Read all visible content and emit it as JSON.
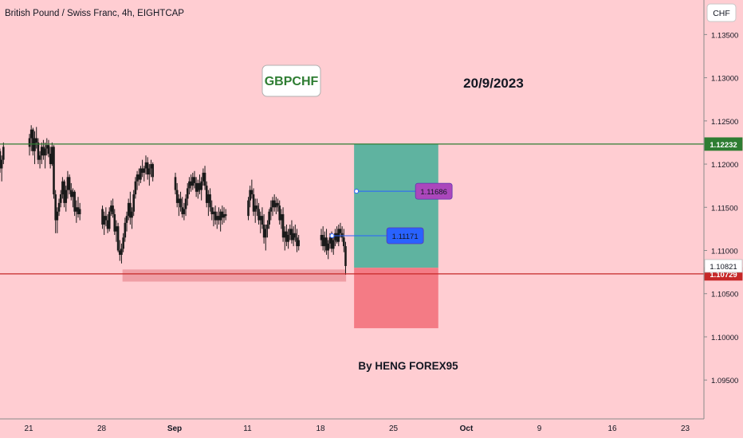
{
  "header": {
    "title": "British Pound / Swiss Franc, 4h, EIGHTCAP",
    "currency_button": "CHF"
  },
  "annotations": {
    "symbol_badge": "GBPCHF",
    "date_label": "20/9/2023",
    "author_label": "By HENG FOREX95"
  },
  "colors": {
    "background": "#ffcdd2",
    "candle": "#1a1a1a",
    "resistance": "#2e7d32",
    "support": "#c62828",
    "profit_zone": "#5fb3a0",
    "loss_zone": "#f47b85",
    "blue_label": "#2962ff",
    "purple_label": "#ab47bc"
  },
  "chart_data": {
    "type": "candlestick",
    "title": "British Pound / Swiss Franc, 4h, EIGHTCAP",
    "ylim": [
      1.0905,
      1.139
    ],
    "price_ticks": [
      "1.13500",
      "1.13000",
      "1.12500",
      "1.12000",
      "1.11500",
      "1.11000",
      "1.10500",
      "1.10000",
      "1.09500"
    ],
    "price_tick_values": [
      1.135,
      1.13,
      1.125,
      1.12,
      1.115,
      1.11,
      1.105,
      1.1,
      1.095
    ],
    "x_ticks": [
      "21",
      "28",
      "Sep",
      "11",
      "18",
      "25",
      "Oct",
      "9",
      "16",
      "23"
    ],
    "x_tick_dates": [
      "2023-08-21",
      "2023-08-28",
      "2023-09-04",
      "2023-09-11",
      "2023-09-18",
      "2023-09-25",
      "2023-10-02",
      "2023-10-09",
      "2023-10-16",
      "2023-10-23"
    ],
    "grid": false,
    "levels": [
      {
        "label": "1.12232",
        "value": 1.12232,
        "kind": "resistance"
      },
      {
        "label": "1.10729",
        "value": 1.10729,
        "kind": "support"
      },
      {
        "label": "1.10821",
        "value": 1.10821,
        "kind": "last-price"
      }
    ],
    "position": {
      "entry": 1.108,
      "target": 1.12232,
      "stop": 1.101,
      "start_date": "2023-09-20",
      "end_date": "2023-09-29"
    },
    "price_labels": [
      {
        "label": "1.11686",
        "value": 1.11686,
        "color": "purple"
      },
      {
        "label": "1.11171",
        "value": 1.11171,
        "color": "blue"
      }
    ],
    "demand_zone": {
      "low": 1.1064,
      "high": 1.1078,
      "start_date": "2023-08-30",
      "end_date": "2023-09-20"
    },
    "candles": [
      [
        "2023-08-17 16:00",
        1.1195,
        1.12,
        1.1173,
        1.118
      ],
      [
        "2023-08-17 20:00",
        1.118,
        1.1205,
        1.1175,
        1.12
      ],
      [
        "2023-08-18 00:00",
        1.12,
        1.1222,
        1.1195,
        1.1215
      ],
      [
        "2023-08-18 04:00",
        1.1215,
        1.1218,
        1.119,
        1.1195
      ],
      [
        "2023-08-18 08:00",
        1.1195,
        1.121,
        1.118,
        1.1205
      ],
      [
        "2023-08-18 12:00",
        1.1205,
        1.1225,
        1.12,
        1.122
      ],
      [
        "2023-08-21 00:00",
        1.122,
        1.1235,
        1.121,
        1.123
      ],
      [
        "2023-08-21 04:00",
        1.123,
        1.1245,
        1.1215,
        1.124
      ],
      [
        "2023-08-21 08:00",
        1.124,
        1.1242,
        1.121,
        1.1215
      ],
      [
        "2023-08-21 12:00",
        1.1215,
        1.1238,
        1.12,
        1.123
      ],
      [
        "2023-08-21 16:00",
        1.123,
        1.1243,
        1.1218,
        1.1225
      ],
      [
        "2023-08-21 20:00",
        1.1225,
        1.123,
        1.12,
        1.1205
      ],
      [
        "2023-08-22 00:00",
        1.1205,
        1.1215,
        1.1195,
        1.121
      ],
      [
        "2023-08-22 04:00",
        1.121,
        1.1225,
        1.12,
        1.122
      ],
      [
        "2023-08-22 08:00",
        1.122,
        1.1228,
        1.1205,
        1.121
      ],
      [
        "2023-08-22 12:00",
        1.121,
        1.1225,
        1.1195,
        1.1218
      ],
      [
        "2023-08-22 16:00",
        1.1218,
        1.123,
        1.121,
        1.1222
      ],
      [
        "2023-08-22 20:00",
        1.1222,
        1.1228,
        1.1208,
        1.1212
      ],
      [
        "2023-08-23 00:00",
        1.1212,
        1.122,
        1.1195,
        1.12
      ],
      [
        "2023-08-23 04:00",
        1.12,
        1.1225,
        1.1198,
        1.122
      ],
      [
        "2023-08-23 08:00",
        1.122,
        1.1222,
        1.116,
        1.1165
      ],
      [
        "2023-08-23 12:00",
        1.1165,
        1.117,
        1.112,
        1.1135
      ],
      [
        "2023-08-23 16:00",
        1.1135,
        1.115,
        1.112,
        1.1145
      ],
      [
        "2023-08-23 20:00",
        1.1145,
        1.116,
        1.114,
        1.1155
      ],
      [
        "2023-08-24 00:00",
        1.1155,
        1.117,
        1.115,
        1.1165
      ],
      [
        "2023-08-24 04:00",
        1.1165,
        1.1185,
        1.116,
        1.118
      ],
      [
        "2023-08-24 08:00",
        1.118,
        1.1182,
        1.115,
        1.1155
      ],
      [
        "2023-08-24 12:00",
        1.1155,
        1.1175,
        1.1145,
        1.117
      ],
      [
        "2023-08-24 16:00",
        1.117,
        1.1192,
        1.116,
        1.1185
      ],
      [
        "2023-08-24 20:00",
        1.1185,
        1.1188,
        1.1165,
        1.117
      ],
      [
        "2023-08-25 00:00",
        1.117,
        1.1178,
        1.1158,
        1.1162
      ],
      [
        "2023-08-25 04:00",
        1.1162,
        1.1172,
        1.115,
        1.1168
      ],
      [
        "2023-08-25 08:00",
        1.1168,
        1.117,
        1.114,
        1.1145
      ],
      [
        "2023-08-25 12:00",
        1.1145,
        1.1158,
        1.1132,
        1.115
      ],
      [
        "2023-08-25 16:00",
        1.115,
        1.1162,
        1.1138,
        1.1142
      ],
      [
        "2023-08-25 20:00",
        1.1142,
        1.1155,
        1.1135,
        1.1148
      ],
      [
        "2023-08-28 00:00",
        1.1148,
        1.1152,
        1.1125,
        1.113
      ],
      [
        "2023-08-28 04:00",
        1.113,
        1.1145,
        1.1118,
        1.114
      ],
      [
        "2023-08-28 08:00",
        1.114,
        1.115,
        1.1128,
        1.1135
      ],
      [
        "2023-08-28 12:00",
        1.1135,
        1.1142,
        1.112,
        1.1125
      ],
      [
        "2023-08-28 16:00",
        1.1125,
        1.115,
        1.1122,
        1.1145
      ],
      [
        "2023-08-28 20:00",
        1.1145,
        1.1158,
        1.114,
        1.1152
      ],
      [
        "2023-08-29 00:00",
        1.1152,
        1.116,
        1.1138,
        1.1142
      ],
      [
        "2023-08-29 04:00",
        1.1142,
        1.1148,
        1.1118,
        1.1122
      ],
      [
        "2023-08-29 08:00",
        1.1122,
        1.1135,
        1.111,
        1.1128
      ],
      [
        "2023-08-29 12:00",
        1.1128,
        1.1132,
        1.1098,
        1.11
      ],
      [
        "2023-08-29 16:00",
        1.11,
        1.1112,
        1.1088,
        1.1095
      ],
      [
        "2023-08-29 20:00",
        1.1095,
        1.1108,
        1.1085,
        1.1102
      ],
      [
        "2023-08-30 00:00",
        1.1102,
        1.112,
        1.1098,
        1.1115
      ],
      [
        "2023-08-30 04:00",
        1.1115,
        1.1138,
        1.111,
        1.1132
      ],
      [
        "2023-08-30 08:00",
        1.1132,
        1.1145,
        1.1122,
        1.114
      ],
      [
        "2023-08-30 12:00",
        1.114,
        1.116,
        1.1135,
        1.1155
      ],
      [
        "2023-08-30 16:00",
        1.1155,
        1.1168,
        1.113,
        1.1138
      ],
      [
        "2023-08-30 20:00",
        1.1138,
        1.115,
        1.1125,
        1.1145
      ],
      [
        "2023-08-31 00:00",
        1.1145,
        1.117,
        1.114,
        1.1165
      ],
      [
        "2023-08-31 04:00",
        1.1165,
        1.1185,
        1.116,
        1.118
      ],
      [
        "2023-08-31 08:00",
        1.118,
        1.1192,
        1.117,
        1.1188
      ],
      [
        "2023-08-31 12:00",
        1.1188,
        1.1195,
        1.1175,
        1.1182
      ],
      [
        "2023-08-31 16:00",
        1.1182,
        1.1198,
        1.1178,
        1.1195
      ],
      [
        "2023-08-31 20:00",
        1.1195,
        1.1205,
        1.1185,
        1.119
      ],
      [
        "2023-09-01 00:00",
        1.119,
        1.1198,
        1.118,
        1.1195
      ],
      [
        "2023-09-01 04:00",
        1.1195,
        1.121,
        1.1188,
        1.1202
      ],
      [
        "2023-09-01 08:00",
        1.1202,
        1.1208,
        1.1182,
        1.1188
      ],
      [
        "2023-09-01 12:00",
        1.1188,
        1.12,
        1.1175,
        1.1195
      ],
      [
        "2023-09-01 16:00",
        1.1195,
        1.1205,
        1.1185,
        1.12
      ],
      [
        "2023-09-01 20:00",
        1.12,
        1.1202,
        1.118,
        1.1185
      ],
      [
        "2023-09-04 00:00",
        1.1185,
        1.119,
        1.1165,
        1.117
      ],
      [
        "2023-09-04 04:00",
        1.117,
        1.1178,
        1.115,
        1.1155
      ],
      [
        "2023-09-04 08:00",
        1.1155,
        1.1165,
        1.114,
        1.116
      ],
      [
        "2023-09-04 12:00",
        1.116,
        1.1168,
        1.1145,
        1.115
      ],
      [
        "2023-09-04 16:00",
        1.115,
        1.1162,
        1.1138,
        1.1142
      ],
      [
        "2023-09-04 20:00",
        1.1142,
        1.1155,
        1.1135,
        1.1148
      ],
      [
        "2023-09-05 00:00",
        1.1148,
        1.1165,
        1.114,
        1.116
      ],
      [
        "2023-09-05 04:00",
        1.116,
        1.1178,
        1.1152,
        1.1172
      ],
      [
        "2023-09-05 08:00",
        1.1172,
        1.1185,
        1.1165,
        1.118
      ],
      [
        "2023-09-05 12:00",
        1.118,
        1.1188,
        1.1168,
        1.1175
      ],
      [
        "2023-09-05 16:00",
        1.1175,
        1.119,
        1.117,
        1.1185
      ],
      [
        "2023-09-05 20:00",
        1.1185,
        1.1192,
        1.1172,
        1.1178
      ],
      [
        "2023-09-06 00:00",
        1.1178,
        1.1185,
        1.1162,
        1.1168
      ],
      [
        "2023-09-06 04:00",
        1.1168,
        1.1182,
        1.116,
        1.1178
      ],
      [
        "2023-09-06 08:00",
        1.1178,
        1.1188,
        1.1165,
        1.117
      ],
      [
        "2023-09-06 12:00",
        1.117,
        1.1185,
        1.1158,
        1.118
      ],
      [
        "2023-09-06 16:00",
        1.118,
        1.1195,
        1.1175,
        1.119
      ],
      [
        "2023-09-06 20:00",
        1.119,
        1.1198,
        1.117,
        1.1175
      ],
      [
        "2023-09-07 00:00",
        1.1175,
        1.118,
        1.115,
        1.1155
      ],
      [
        "2023-09-07 04:00",
        1.1155,
        1.117,
        1.114,
        1.1165
      ],
      [
        "2023-09-07 08:00",
        1.1165,
        1.1172,
        1.1145,
        1.115
      ],
      [
        "2023-09-07 12:00",
        1.115,
        1.1158,
        1.1135,
        1.1142
      ],
      [
        "2023-09-07 16:00",
        1.1142,
        1.115,
        1.1128,
        1.1145
      ],
      [
        "2023-09-07 20:00",
        1.1145,
        1.1152,
        1.113,
        1.1135
      ],
      [
        "2023-09-08 00:00",
        1.1135,
        1.1145,
        1.1125,
        1.114
      ],
      [
        "2023-09-08 04:00",
        1.114,
        1.115,
        1.113,
        1.1135
      ],
      [
        "2023-09-08 08:00",
        1.1135,
        1.1148,
        1.1122,
        1.1145
      ],
      [
        "2023-09-08 12:00",
        1.1145,
        1.1152,
        1.113,
        1.1138
      ],
      [
        "2023-09-08 16:00",
        1.1138,
        1.115,
        1.1132,
        1.1142
      ],
      [
        "2023-09-08 20:00",
        1.1142,
        1.1148,
        1.1135,
        1.114
      ],
      [
        "2023-09-11 00:00",
        1.114,
        1.1162,
        1.1135,
        1.1158
      ],
      [
        "2023-09-11 04:00",
        1.1158,
        1.1175,
        1.115,
        1.117
      ],
      [
        "2023-09-11 08:00",
        1.117,
        1.1182,
        1.116,
        1.1165
      ],
      [
        "2023-09-11 12:00",
        1.1165,
        1.1172,
        1.114,
        1.1145
      ],
      [
        "2023-09-11 16:00",
        1.1145,
        1.116,
        1.1132,
        1.1152
      ],
      [
        "2023-09-11 20:00",
        1.1152,
        1.116,
        1.114,
        1.1148
      ],
      [
        "2023-09-12 00:00",
        1.1148,
        1.1155,
        1.113,
        1.1135
      ],
      [
        "2023-09-12 04:00",
        1.1135,
        1.1145,
        1.112,
        1.114
      ],
      [
        "2023-09-12 08:00",
        1.114,
        1.115,
        1.1125,
        1.113
      ],
      [
        "2023-09-12 12:00",
        1.113,
        1.1142,
        1.1108,
        1.1115
      ],
      [
        "2023-09-12 16:00",
        1.1115,
        1.113,
        1.11,
        1.1125
      ],
      [
        "2023-09-12 20:00",
        1.1125,
        1.1135,
        1.1115,
        1.113
      ],
      [
        "2023-09-13 00:00",
        1.113,
        1.1148,
        1.1125,
        1.1145
      ],
      [
        "2023-09-13 04:00",
        1.1145,
        1.1158,
        1.1135,
        1.115
      ],
      [
        "2023-09-13 08:00",
        1.115,
        1.1162,
        1.114,
        1.1158
      ],
      [
        "2023-09-13 12:00",
        1.1158,
        1.1165,
        1.1145,
        1.115
      ],
      [
        "2023-09-13 16:00",
        1.115,
        1.1162,
        1.1142,
        1.1155
      ],
      [
        "2023-09-13 20:00",
        1.1155,
        1.116,
        1.1145,
        1.1152
      ],
      [
        "2023-09-14 00:00",
        1.1152,
        1.1158,
        1.113,
        1.1135
      ],
      [
        "2023-09-14 04:00",
        1.1135,
        1.1148,
        1.1125,
        1.1142
      ],
      [
        "2023-09-14 08:00",
        1.1142,
        1.115,
        1.111,
        1.1115
      ],
      [
        "2023-09-14 12:00",
        1.1115,
        1.1128,
        1.11,
        1.1122
      ],
      [
        "2023-09-14 16:00",
        1.1122,
        1.113,
        1.1105,
        1.111
      ],
      [
        "2023-09-14 20:00",
        1.111,
        1.1125,
        1.1102,
        1.1118
      ],
      [
        "2023-09-15 00:00",
        1.1118,
        1.113,
        1.1112,
        1.1125
      ],
      [
        "2023-09-15 04:00",
        1.1125,
        1.1135,
        1.1108,
        1.1112
      ],
      [
        "2023-09-15 08:00",
        1.1112,
        1.1128,
        1.1105,
        1.112
      ],
      [
        "2023-09-15 12:00",
        1.112,
        1.113,
        1.111,
        1.1115
      ],
      [
        "2023-09-15 16:00",
        1.1115,
        1.1125,
        1.1098,
        1.1105
      ],
      [
        "2023-09-15 20:00",
        1.1105,
        1.1118,
        1.11,
        1.1112
      ],
      [
        "2023-09-18 00:00",
        1.1112,
        1.1125,
        1.1105,
        1.1118
      ],
      [
        "2023-09-18 04:00",
        1.1118,
        1.1128,
        1.11,
        1.1105
      ],
      [
        "2023-09-18 08:00",
        1.1105,
        1.1122,
        1.1098,
        1.1115
      ],
      [
        "2023-09-18 12:00",
        1.1115,
        1.1125,
        1.1095,
        1.11
      ],
      [
        "2023-09-18 16:00",
        1.11,
        1.1112,
        1.109,
        1.1108
      ],
      [
        "2023-09-18 20:00",
        1.1108,
        1.112,
        1.1102,
        1.1115
      ],
      [
        "2023-09-19 00:00",
        1.1115,
        1.1122,
        1.1098,
        1.1102
      ],
      [
        "2023-09-19 04:00",
        1.1102,
        1.1118,
        1.1095,
        1.1112
      ],
      [
        "2023-09-19 08:00",
        1.1112,
        1.1125,
        1.1105,
        1.112
      ],
      [
        "2023-09-19 12:00",
        1.112,
        1.1128,
        1.1108,
        1.111
      ],
      [
        "2023-09-19 16:00",
        1.111,
        1.113,
        1.1105,
        1.1125
      ],
      [
        "2023-09-19 20:00",
        1.1125,
        1.1132,
        1.1115,
        1.112
      ],
      [
        "2023-09-20 00:00",
        1.112,
        1.1128,
        1.111,
        1.1115
      ],
      [
        "2023-09-20 04:00",
        1.1115,
        1.1125,
        1.1098,
        1.1105
      ],
      [
        "2023-09-20 08:00",
        1.1105,
        1.111,
        1.1072,
        1.1082
      ]
    ]
  }
}
